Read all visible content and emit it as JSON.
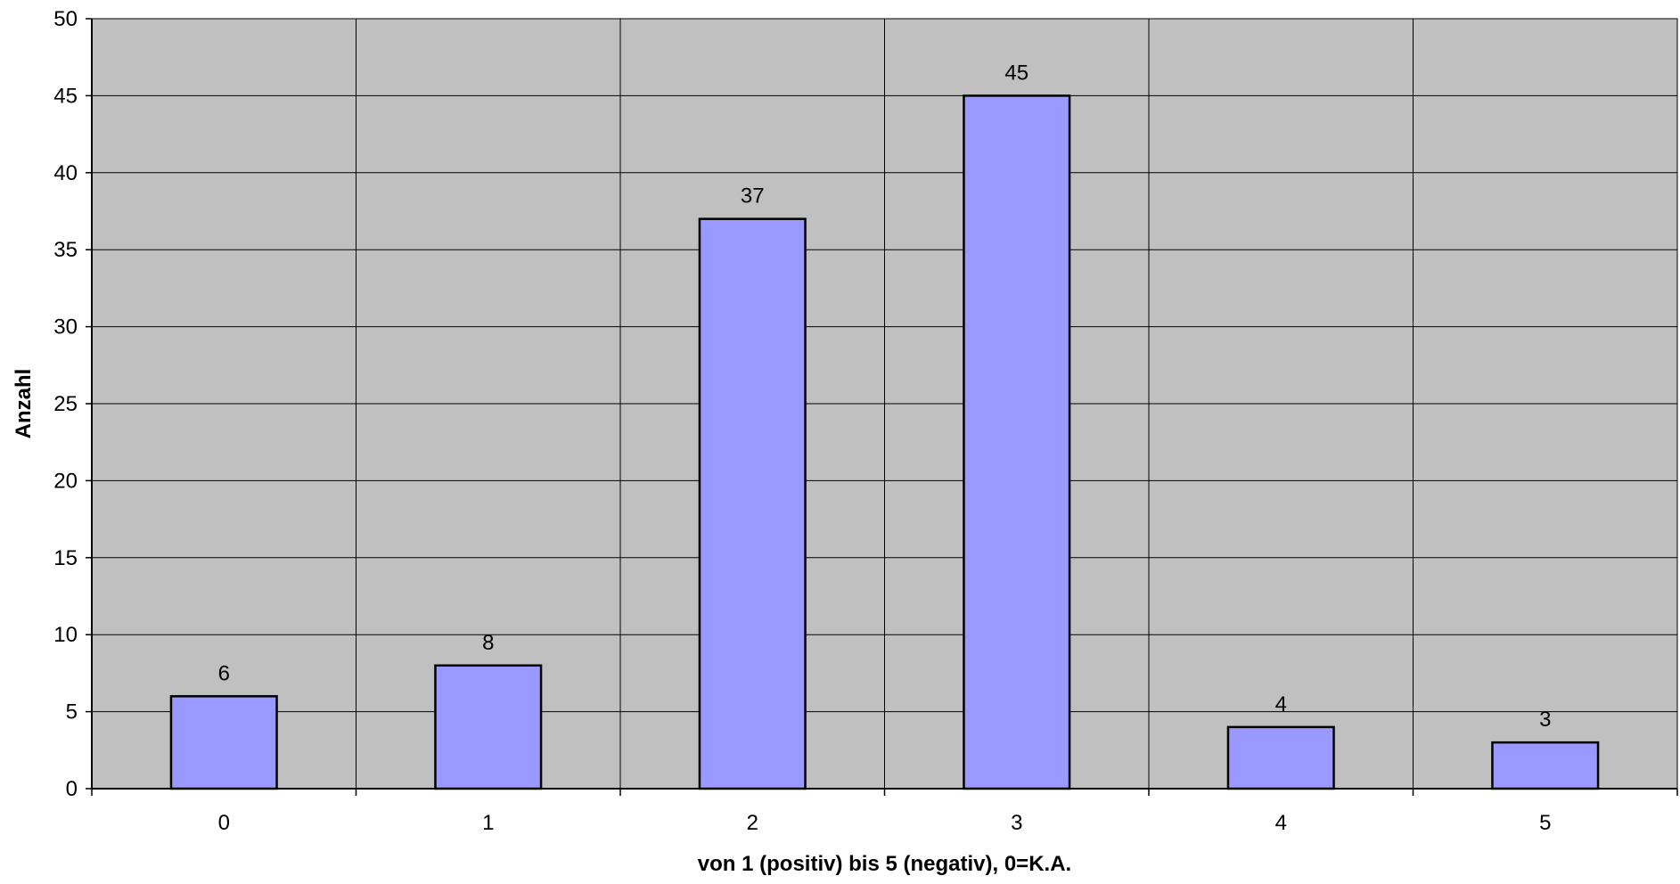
{
  "chart_data": {
    "type": "bar",
    "title": "",
    "xlabel": "von 1 (positiv) bis 5 (negativ), 0=K.A.",
    "ylabel": "Anzahl",
    "categories": [
      "0",
      "1",
      "2",
      "3",
      "4",
      "5"
    ],
    "values": [
      6,
      8,
      37,
      45,
      4,
      3
    ],
    "data_labels": [
      "6",
      "8",
      "37",
      "45",
      "4",
      "3"
    ],
    "ylim": [
      0,
      50
    ],
    "ytick_step": 5,
    "grid": true,
    "legend": "none",
    "colors": {
      "plot_background": "#C0C0C0",
      "bar_fill": "#9999FF",
      "bar_stroke": "#000000",
      "grid": "#000000"
    }
  }
}
